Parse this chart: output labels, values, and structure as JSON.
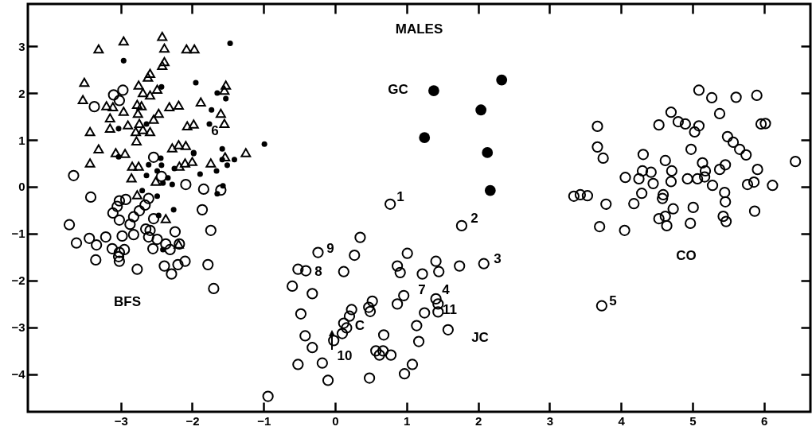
{
  "chart_data": {
    "type": "scatter",
    "title": "MALES",
    "xlim": [
      -4.3,
      6.65
    ],
    "ylim": [
      -4.8,
      3.9
    ],
    "xticks": [
      -3,
      -2,
      -1,
      0,
      1,
      2,
      3,
      4,
      5,
      6
    ],
    "yticks": [
      -4,
      -3,
      -2,
      -1,
      0,
      1,
      2,
      3
    ],
    "grid": false,
    "series": [
      {
        "color": "#000000",
        "marker": "circle",
        "x": [
          0.77,
          1.77,
          0.35,
          -0.24,
          0.27,
          1.01,
          -0.52,
          -0.41,
          0.12,
          0.87,
          0.91,
          1.41,
          1.45,
          1.74,
          2.08,
          1.22,
          -0.6,
          -0.32,
          0.52,
          0.47,
          0.49,
          0.96,
          0.87,
          1.41,
          1.44,
          1.44,
          1.25,
          0.23,
          0.2,
          0.12,
          0.16,
          0.1,
          -0.48,
          1.14,
          1.58,
          -0.42,
          -0.02,
          0.68,
          1.17,
          -0.32,
          0.57,
          0.62,
          0.67,
          0.78,
          -0.52,
          -0.18,
          1.08,
          0.97,
          -0.1,
          0.48,
          -0.94,
          3.73,
          5.09,
          5.27,
          5.61,
          5.9,
          4.7,
          5.38,
          4.8,
          4.9,
          5.09,
          5.03,
          4.53,
          3.67,
          5.96,
          6.02,
          5.49,
          5.57,
          5.66,
          5.75,
          3.67,
          3.75,
          4.98,
          4.31,
          4.62,
          5.14,
          5.46,
          5.38,
          6.44,
          5.91,
          4.71,
          4.3,
          4.42,
          5.18,
          4.06,
          4.25,
          4.45,
          4.7,
          4.93,
          5.07,
          5.17,
          5.28,
          5.77,
          5.86,
          6.12,
          3.34,
          3.43,
          3.53,
          3.79,
          4.18,
          4.29,
          4.59,
          4.58,
          5.45,
          5.46,
          4.73,
          5.01,
          4.62,
          4.53,
          4.64,
          4.97,
          5.43,
          5.47,
          5.87,
          3.7,
          4.05,
          -2.97,
          -3.1,
          -3.02,
          -3.37,
          -2.54,
          -3.66,
          -2.43,
          -2.09,
          -1.84,
          -1.6,
          -3.42,
          -3.02,
          -2.93,
          -3.05,
          -3.11,
          -3.02,
          -2.61,
          -2.66,
          -2.74,
          -2.82,
          -2.87,
          -2.54,
          -1.86,
          -3.72,
          -2.65,
          -2.59,
          -2.24,
          -1.74,
          -3.21,
          -2.98,
          -2.82,
          -3.44,
          -3.62,
          -3.34,
          -2.61,
          -2.49,
          -2.37,
          -2.18,
          -3.12,
          -2.95,
          -3.02,
          -3.03,
          -3.02,
          -2.55,
          -2.31,
          -3.35,
          -2.77,
          -2.39,
          -2.29,
          -2.2,
          -2.1,
          -1.78,
          -1.7
        ],
        "values": [
          -0.37,
          -0.83,
          -1.08,
          -1.4,
          -1.46,
          -1.42,
          -1.76,
          -1.79,
          -1.81,
          -1.69,
          -1.83,
          -1.59,
          -1.81,
          -1.69,
          -1.64,
          -1.86,
          -2.12,
          -2.28,
          -2.44,
          -2.57,
          -2.66,
          -2.32,
          -2.5,
          -2.39,
          -2.5,
          -2.67,
          -2.69,
          -2.62,
          -2.76,
          -2.91,
          -3.01,
          -3.13,
          -2.71,
          -2.96,
          -3.05,
          -3.18,
          -3.28,
          -3.16,
          -3.3,
          -3.43,
          -3.5,
          -3.59,
          -3.5,
          -3.59,
          -3.79,
          -3.76,
          -3.79,
          -3.99,
          -4.13,
          -4.08,
          -4.47,
          -2.54,
          2.06,
          1.9,
          1.91,
          1.95,
          1.59,
          1.56,
          1.39,
          1.34,
          1.3,
          1.17,
          1.32,
          1.29,
          1.34,
          1.35,
          1.07,
          0.95,
          0.8,
          0.68,
          0.85,
          0.61,
          0.8,
          0.69,
          0.56,
          0.51,
          0.47,
          0.37,
          0.54,
          0.37,
          0.34,
          0.34,
          0.31,
          0.34,
          0.2,
          0.17,
          0.07,
          0.11,
          0.17,
          0.17,
          0.21,
          0.03,
          0.05,
          0.1,
          0.03,
          -0.2,
          -0.17,
          -0.19,
          -0.37,
          -0.36,
          -0.14,
          -0.17,
          -0.25,
          -0.12,
          -0.32,
          -0.47,
          -0.44,
          -0.63,
          -0.68,
          -0.83,
          -0.78,
          -0.63,
          -0.74,
          -0.52,
          -0.85,
          -0.93,
          2.06,
          1.96,
          1.84,
          1.71,
          0.63,
          0.24,
          0.22,
          0.05,
          -0.05,
          -0.07,
          -0.22,
          -0.3,
          -0.27,
          -0.42,
          -0.56,
          -0.71,
          -0.25,
          -0.39,
          -0.51,
          -0.64,
          -0.8,
          -0.68,
          -0.49,
          -0.81,
          -0.9,
          -0.93,
          -0.96,
          -0.93,
          -1.07,
          -1.05,
          -1.02,
          -1.1,
          -1.2,
          -1.24,
          -1.07,
          -1.12,
          -1.22,
          -1.22,
          -1.32,
          -1.34,
          -1.4,
          -1.49,
          -1.59,
          -1.32,
          -1.34,
          -1.56,
          -1.76,
          -1.69,
          -1.86,
          -1.66,
          -1.59,
          -1.66,
          -2.17
        ]
      },
      {
        "color": "#000000",
        "marker": "triangle",
        "x": [
          -3.31,
          -2.96,
          -2.42,
          -2.39,
          -2.08,
          -1.97,
          -2.39,
          -2.42,
          -2.59,
          -2.62,
          -3.51,
          -2.75,
          -2.69,
          -2.49,
          -2.59,
          -1.53,
          -1.55,
          -3.53,
          -3.2,
          -3.11,
          -2.77,
          -2.71,
          -2.96,
          -2.76,
          -2.47,
          -2.32,
          -2.19,
          -1.88,
          -1.6,
          -3.15,
          -2.54,
          -2.74,
          -2.9,
          -3.15,
          -1.55,
          -2.07,
          -1.98,
          -3.43,
          -2.79,
          -2.69,
          -2.59,
          -2.78,
          -3.31,
          -3.07,
          -2.94,
          -2.28,
          -2.19,
          -2.09,
          -1.25,
          -1.54,
          -3.43,
          -2.84,
          -2.75,
          -2.18,
          -2.1,
          -2.0,
          -1.74,
          -2.85,
          -2.51,
          -2.77,
          -2.37,
          -2.19
        ],
        "values": [
          2.94,
          3.11,
          3.21,
          2.96,
          2.94,
          2.94,
          2.67,
          2.59,
          2.42,
          2.34,
          2.23,
          2.17,
          2.01,
          2.08,
          1.96,
          2.17,
          2.06,
          1.86,
          1.73,
          1.71,
          1.76,
          1.73,
          1.61,
          1.57,
          1.57,
          1.71,
          1.74,
          1.81,
          1.57,
          1.47,
          1.44,
          1.35,
          1.32,
          1.25,
          1.35,
          1.3,
          1.34,
          1.18,
          1.18,
          1.22,
          1.18,
          0.98,
          0.81,
          0.73,
          0.71,
          0.83,
          0.9,
          0.88,
          0.73,
          0.64,
          0.51,
          0.44,
          0.44,
          0.44,
          0.51,
          0.54,
          0.51,
          0.19,
          0.12,
          -0.17,
          -0.68,
          -1.22
        ]
      },
      {
        "color": "#000000",
        "marker": "circle",
        "x": [
          -1.47,
          -2.96,
          -1.95,
          -2.43,
          -1.65,
          -1.53,
          -1.73,
          -1.76,
          -3.03,
          -2.64,
          -0.99,
          -1.58,
          -1.98,
          -3.03,
          -2.44,
          -2.61,
          -2.43,
          -2.25,
          -1.98,
          -1.66,
          -1.58,
          -1.41,
          -1.51,
          -2.64,
          -2.49,
          -2.34,
          -2.41,
          -2.28,
          -1.89,
          -1.57,
          -1.65,
          -2.7,
          -2.49,
          -2.26,
          -2.47,
          -2.41
        ],
        "values": [
          3.06,
          2.69,
          2.22,
          2.13,
          2.0,
          1.88,
          1.64,
          1.34,
          1.24,
          1.34,
          0.91,
          0.81,
          0.73,
          0.64,
          0.61,
          0.47,
          0.46,
          0.39,
          0.71,
          0.34,
          0.58,
          0.58,
          0.46,
          0.24,
          0.34,
          0.19,
          0.08,
          0.05,
          0.27,
          0.02,
          -0.15,
          -0.08,
          -0.2,
          -0.49,
          -0.61,
          -1.34
        ]
      },
      {
        "color": "#000000",
        "marker": "circle",
        "x": [
          1.38,
          2.33,
          2.04,
          1.25,
          2.13,
          2.17
        ],
        "values": [
          2.05,
          2.28,
          1.64,
          1.05,
          0.73,
          -0.08
        ]
      }
    ],
    "annotations": [
      "GC",
      "BFS",
      "JC",
      "CO",
      "1",
      "2",
      "3",
      "4",
      "5",
      "6",
      "7",
      "8",
      "9",
      "10",
      "11",
      "C"
    ]
  }
}
